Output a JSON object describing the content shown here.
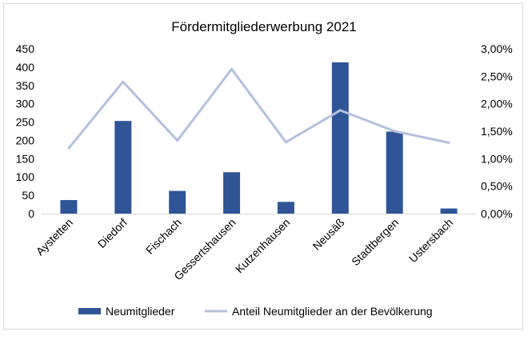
{
  "chart_data": {
    "type": "bar",
    "title": "Fördermitgliederwerbung 2021",
    "categories": [
      "Aystetten",
      "Diedorf",
      "Fischach",
      "Gessertshausen",
      "Kutzenhausen",
      "Neusäß",
      "Stadtbergen",
      "Ustersbach"
    ],
    "series": [
      {
        "name": "Neumitglieder",
        "type": "bar",
        "axis": "left",
        "color": "#2f5597",
        "values": [
          37,
          253,
          62,
          113,
          32,
          413,
          224,
          14
        ]
      },
      {
        "name": "Anteil Neumitglieder an der Bevölkerung",
        "type": "line",
        "axis": "right",
        "color": "#b4c0dc",
        "values": [
          0.0119,
          0.024,
          0.0133,
          0.0263,
          0.013,
          0.0188,
          0.015,
          0.0129
        ]
      }
    ],
    "y_left": {
      "range": [
        0,
        450
      ],
      "ticks": [
        0,
        50,
        100,
        150,
        200,
        250,
        300,
        350,
        400,
        450
      ],
      "tick_labels": [
        "0",
        "50",
        "100",
        "150",
        "200",
        "250",
        "300",
        "350",
        "400",
        "450"
      ]
    },
    "y_right": {
      "range": [
        0,
        0.03
      ],
      "ticks": [
        0,
        0.005,
        0.01,
        0.015,
        0.02,
        0.025,
        0.03
      ],
      "tick_labels": [
        "0,00%",
        "0,50%",
        "1,00%",
        "1,50%",
        "2,00%",
        "2,50%",
        "3,00%"
      ]
    },
    "grid": false,
    "legend_position": "bottom"
  }
}
